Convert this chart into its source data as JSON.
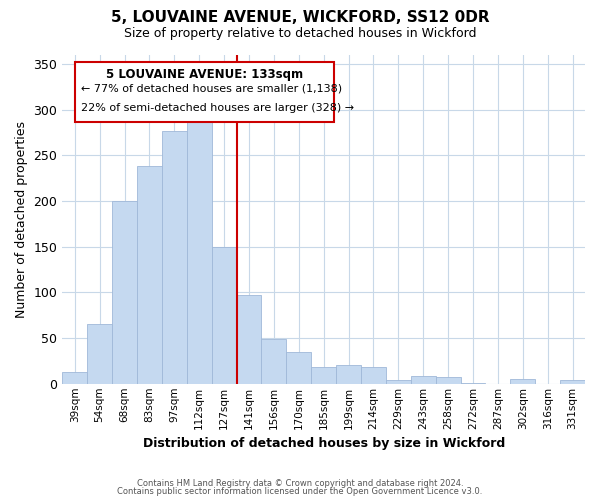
{
  "title": "5, LOUVAINE AVENUE, WICKFORD, SS12 0DR",
  "subtitle": "Size of property relative to detached houses in Wickford",
  "xlabel": "Distribution of detached houses by size in Wickford",
  "ylabel": "Number of detached properties",
  "bar_labels": [
    "39sqm",
    "54sqm",
    "68sqm",
    "83sqm",
    "97sqm",
    "112sqm",
    "127sqm",
    "141sqm",
    "156sqm",
    "170sqm",
    "185sqm",
    "199sqm",
    "214sqm",
    "229sqm",
    "243sqm",
    "258sqm",
    "272sqm",
    "287sqm",
    "302sqm",
    "316sqm",
    "331sqm"
  ],
  "bar_values": [
    13,
    65,
    200,
    238,
    277,
    290,
    150,
    97,
    49,
    35,
    18,
    20,
    18,
    4,
    8,
    7,
    1,
    0,
    5,
    0,
    4
  ],
  "bar_color": "#c5d9f0",
  "bar_edge_color": "#a0b8d8",
  "vline_x_index": 6,
  "vline_color": "#cc0000",
  "ylim": [
    0,
    360
  ],
  "yticks": [
    0,
    50,
    100,
    150,
    200,
    250,
    300,
    350
  ],
  "annotation_title": "5 LOUVAINE AVENUE: 133sqm",
  "annotation_line1": "← 77% of detached houses are smaller (1,138)",
  "annotation_line2": "22% of semi-detached houses are larger (328) →",
  "annotation_box_color": "#ffffff",
  "annotation_box_edge": "#cc0000",
  "footer_line1": "Contains HM Land Registry data © Crown copyright and database right 2024.",
  "footer_line2": "Contains public sector information licensed under the Open Government Licence v3.0.",
  "background_color": "#ffffff",
  "grid_color": "#c8d8e8"
}
